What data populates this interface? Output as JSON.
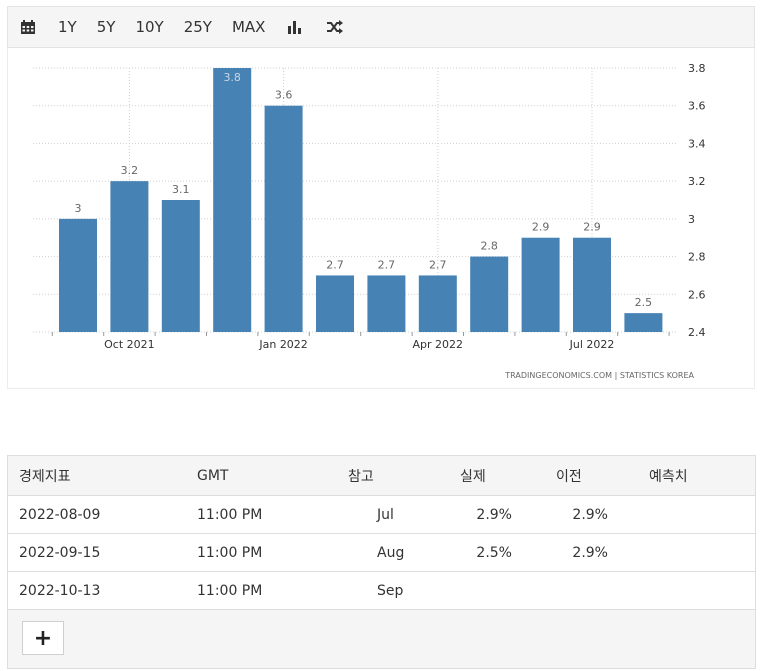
{
  "toolbar": {
    "calendar_icon": "calendar-icon",
    "ranges": [
      "1Y",
      "5Y",
      "10Y",
      "25Y",
      "MAX"
    ],
    "bar_chart_icon": "bar-chart-icon",
    "shuffle_icon": "shuffle-icon"
  },
  "chart_data": {
    "type": "bar",
    "categories": [
      "Sep 2021",
      "Oct 2021",
      "Nov 2021",
      "Dec 2021",
      "Jan 2022",
      "Feb 2022",
      "Mar 2022",
      "Apr 2022",
      "May 2022",
      "Jun 2022",
      "Jul 2022",
      "Aug 2022"
    ],
    "values": [
      3.0,
      3.2,
      3.1,
      3.8,
      3.6,
      2.7,
      2.7,
      2.7,
      2.8,
      2.9,
      2.9,
      2.5
    ],
    "data_labels": [
      "3",
      "3.2",
      "3.1",
      "3.8",
      "3.6",
      "2.7",
      "2.7",
      "2.7",
      "2.8",
      "2.9",
      "2.9",
      "2.5"
    ],
    "x_tick_labels": [
      {
        "index": 1,
        "label": "Oct 2021"
      },
      {
        "index": 4,
        "label": "Jan 2022"
      },
      {
        "index": 7,
        "label": "Apr 2022"
      },
      {
        "index": 10,
        "label": "Jul 2022"
      }
    ],
    "y_ticks": [
      "3.8",
      "3.6",
      "3.4",
      "3.2",
      "3",
      "2.8",
      "2.6",
      "2.4"
    ],
    "ylim": [
      2.4,
      3.8
    ],
    "bar_color": "#4682b4",
    "grid": true,
    "y_axis_position": "right",
    "source": "TRADINGECONOMICS.COM  |  STATISTICS KOREA"
  },
  "table": {
    "headers": [
      "경제지표",
      "GMT",
      "참고",
      "실제",
      "이전",
      "예측치"
    ],
    "rows": [
      {
        "date": "2022-08-09",
        "time": "11:00 PM",
        "ref": "Jul",
        "actual": "2.9%",
        "previous": "2.9%",
        "forecast": ""
      },
      {
        "date": "2022-09-15",
        "time": "11:00 PM",
        "ref": "Aug",
        "actual": "2.5%",
        "previous": "2.9%",
        "forecast": ""
      },
      {
        "date": "2022-10-13",
        "time": "11:00 PM",
        "ref": "Sep",
        "actual": "",
        "previous": "",
        "forecast": ""
      }
    ],
    "more_label": "+"
  }
}
